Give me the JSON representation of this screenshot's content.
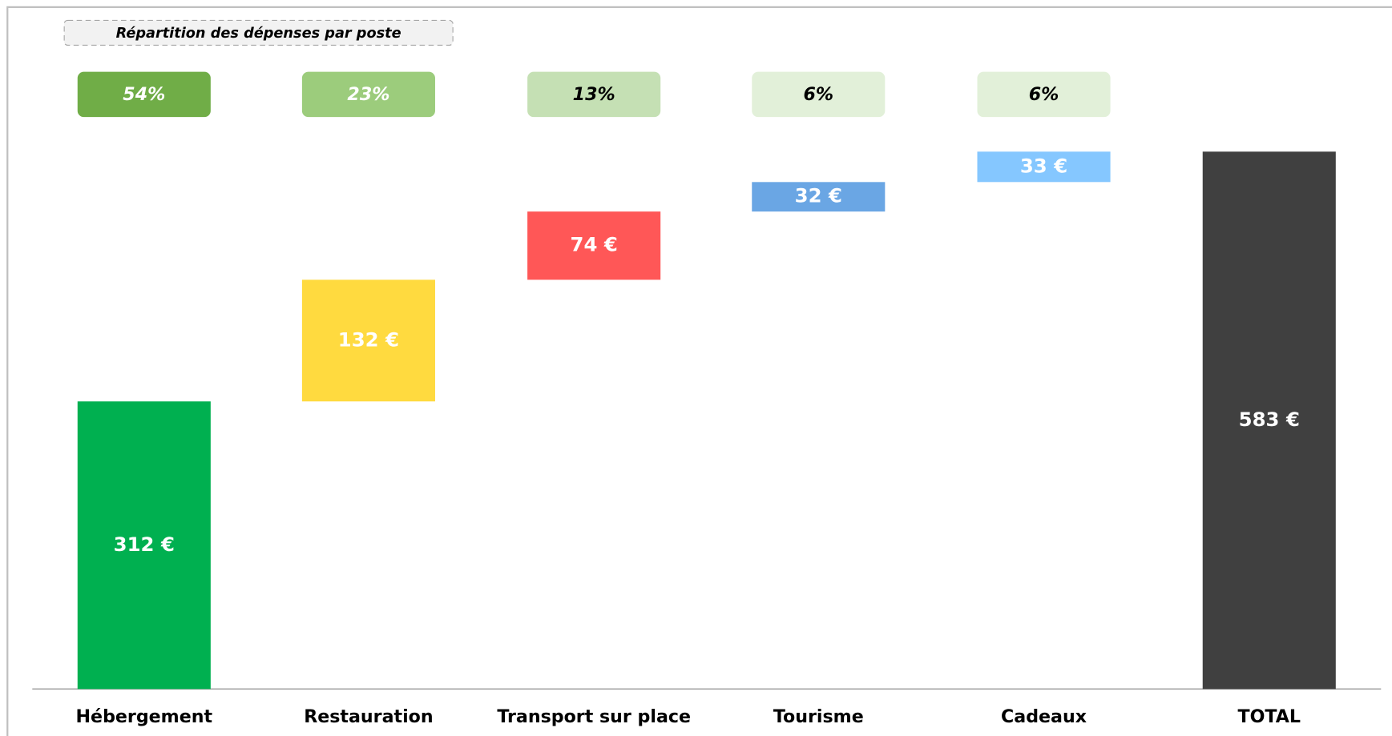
{
  "chart_data": {
    "type": "waterfall",
    "title": "Répartition des dépenses par poste",
    "categories": [
      "Hébergement",
      "Restauration",
      "Transport sur place",
      "Tourisme",
      "Cadeaux",
      "TOTAL"
    ],
    "values": [
      312,
      132,
      74,
      32,
      33,
      583
    ],
    "value_labels": [
      "312 €",
      "132 €",
      "74 €",
      "32 €",
      "33 €",
      "583 €"
    ],
    "is_total": [
      false,
      false,
      false,
      false,
      false,
      true
    ],
    "colors": [
      "#00b050",
      "#ffda3f",
      "#ff5757",
      "#6aa6e4",
      "#85c7ff",
      "#404040"
    ],
    "percent_values": [
      54,
      23,
      13,
      6,
      6
    ],
    "percent_labels": [
      "54%",
      "23%",
      "13%",
      "6%",
      "6%"
    ],
    "percent_colors": [
      "#70ad47",
      "#9ccc7c",
      "#c5e0b4",
      "#e2f0d9",
      "#e2f0d9"
    ],
    "percent_text_colors": [
      "#ffffff",
      "#ffffff",
      "#000000",
      "#000000",
      "#000000"
    ],
    "ylim": [
      0,
      583
    ]
  }
}
